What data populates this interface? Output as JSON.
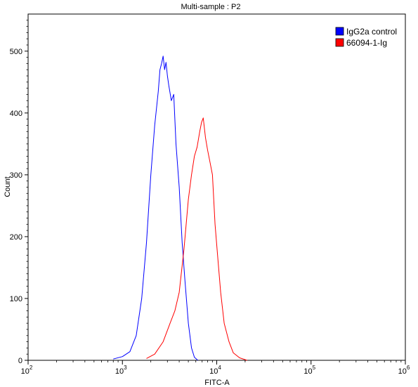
{
  "chart_data": {
    "type": "line",
    "title": "Multi-sample : P2",
    "xlabel": "FITC-A",
    "ylabel": "Count",
    "x_scale": "log",
    "xlim": [
      100,
      1000000
    ],
    "ylim": [
      0,
      560
    ],
    "y_ticks": [
      0,
      100,
      200,
      300,
      400,
      500
    ],
    "x_ticks": [
      {
        "base": "10",
        "exp": "2",
        "value": 100
      },
      {
        "base": "10",
        "exp": "3",
        "value": 1000
      },
      {
        "base": "10",
        "exp": "4",
        "value": 10000
      },
      {
        "base": "10",
        "exp": "5",
        "value": 100000
      },
      {
        "base": "10",
        "exp": "6",
        "value": 1000000
      }
    ],
    "legend_position": "top-right",
    "series": [
      {
        "name": "IgG2a control",
        "color": "#0000ff",
        "x": [
          800,
          1000,
          1200,
          1400,
          1600,
          1800,
          2000,
          2200,
          2400,
          2500,
          2600,
          2700,
          2800,
          2900,
          3000,
          3100,
          3300,
          3500,
          3700,
          4000,
          4300,
          4600,
          5000,
          5400,
          5800,
          6300
        ],
        "y": [
          2,
          6,
          14,
          40,
          100,
          190,
          300,
          380,
          435,
          470,
          480,
          492,
          470,
          482,
          460,
          445,
          420,
          430,
          350,
          280,
          190,
          130,
          60,
          20,
          5,
          0
        ]
      },
      {
        "name": "66094-1-Ig",
        "color": "#ff0000",
        "x": [
          1800,
          2200,
          2700,
          3200,
          3600,
          4000,
          4500,
          5000,
          5400,
          5800,
          6200,
          6600,
          6900,
          7200,
          7600,
          8000,
          8500,
          9000,
          9600,
          10200,
          11000,
          12000,
          13500,
          15000,
          17500,
          21000
        ],
        "y": [
          3,
          10,
          30,
          60,
          80,
          110,
          180,
          260,
          300,
          330,
          345,
          370,
          385,
          392,
          360,
          340,
          320,
          300,
          220,
          170,
          110,
          60,
          30,
          12,
          4,
          0
        ]
      }
    ]
  }
}
